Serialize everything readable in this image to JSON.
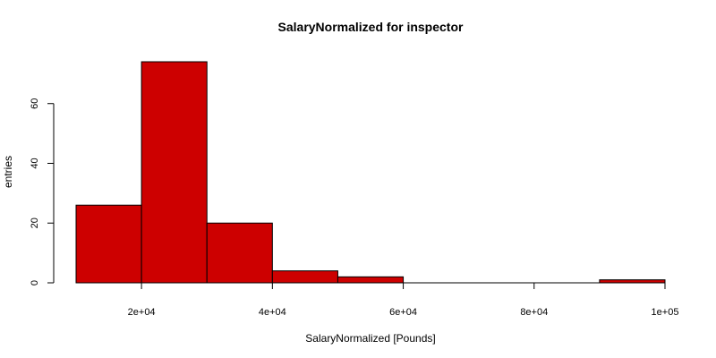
{
  "chart_data": {
    "type": "bar",
    "title": "SalaryNormalized for inspector",
    "xlabel": "SalaryNormalized [Pounds]",
    "ylabel": "entries",
    "bin_edges": [
      10000,
      20000,
      30000,
      40000,
      50000,
      60000,
      70000,
      80000,
      90000,
      100000
    ],
    "values": [
      26,
      74,
      20,
      4,
      2,
      0,
      0,
      0,
      1
    ],
    "xlim": [
      10000,
      100000
    ],
    "ylim": [
      0,
      74
    ],
    "x_ticks": [
      20000,
      40000,
      60000,
      80000,
      100000
    ],
    "x_tick_labels": [
      "2e+04",
      "4e+04",
      "6e+04",
      "8e+04",
      "1e+05"
    ],
    "y_ticks": [
      0,
      20,
      40,
      60
    ],
    "y_tick_labels": [
      "0",
      "20",
      "40",
      "60"
    ],
    "grid": false,
    "bar_color": "#CD0000",
    "bar_edge_color": "#000000"
  }
}
